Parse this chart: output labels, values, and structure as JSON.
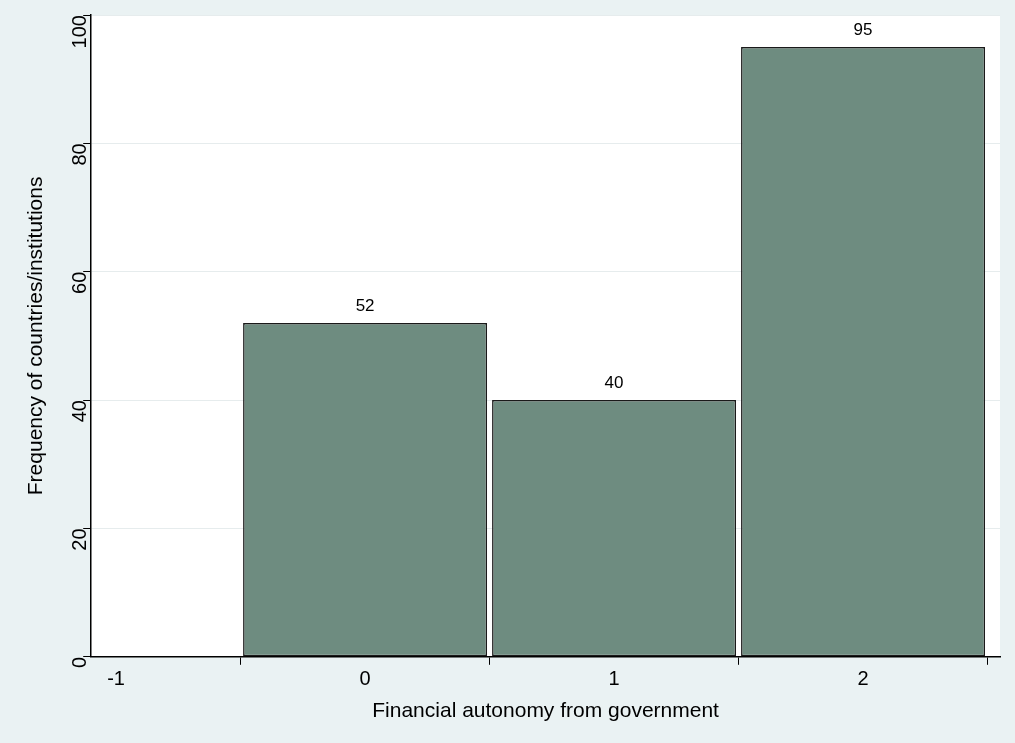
{
  "chart_data": {
    "type": "histogram",
    "xlabel": "Financial autonomy from government",
    "ylabel": "Frequency of countries/institutions",
    "bins": [
      -0.5,
      0.5,
      1.5,
      2.5
    ],
    "values": [
      52,
      40,
      95
    ],
    "color": "#6e8c80",
    "xlim": [
      -1.1,
      2.55
    ],
    "xticks": [
      -1,
      0,
      1,
      2
    ],
    "ylim": [
      0,
      100
    ],
    "yticks": [
      0,
      20,
      40,
      60,
      80,
      100
    ],
    "grid": "y",
    "data_labels": true
  }
}
